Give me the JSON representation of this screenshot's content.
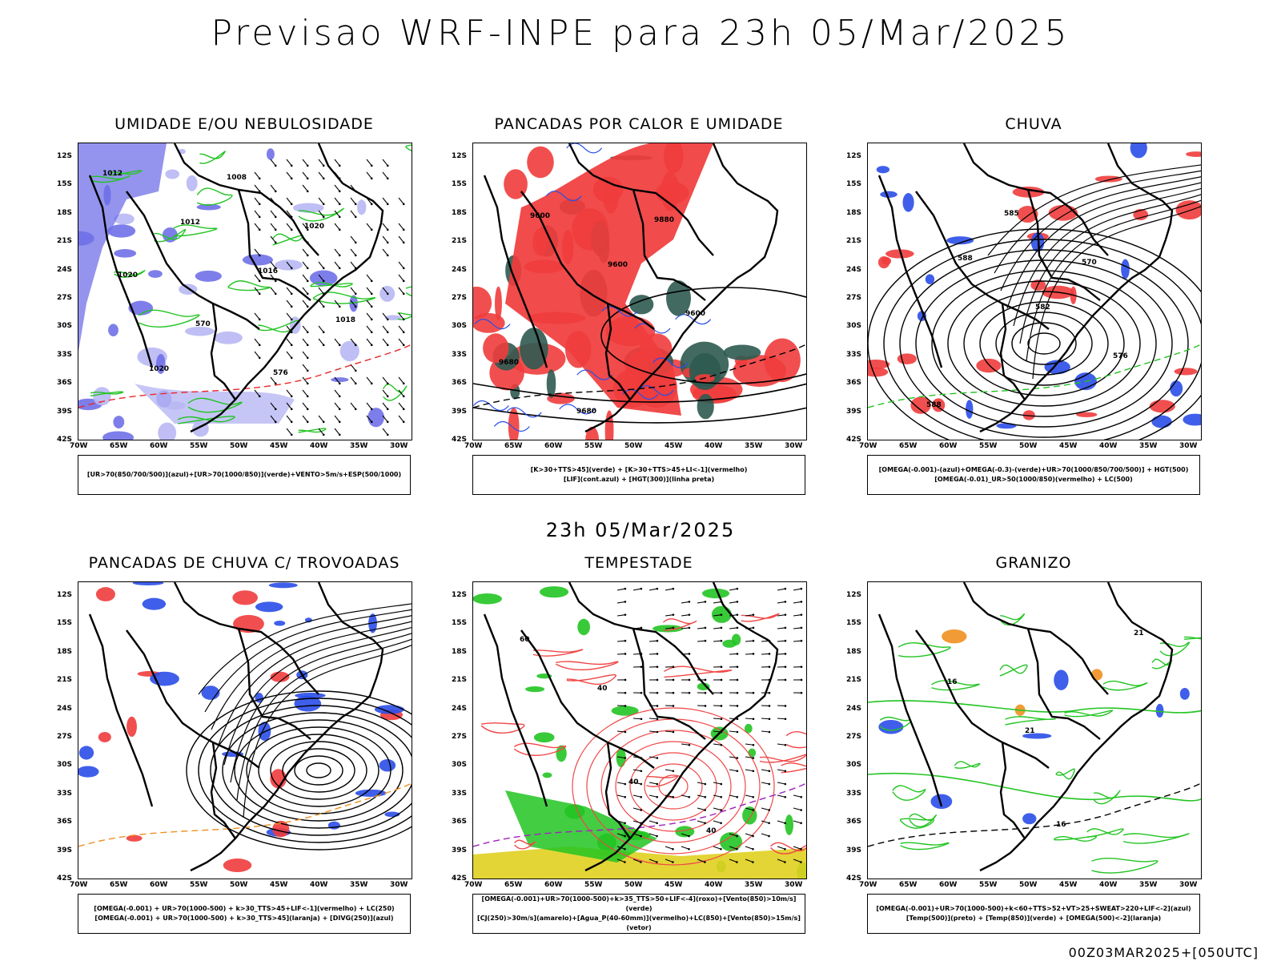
{
  "title": "Previsao WRF-INPE  para 23h 05/Mar/2025",
  "subtitle": "23h 05/Mar/2025",
  "footer": "00Z03MAR2025+[050UTC]",
  "axes": {
    "lat": [
      "12S",
      "15S",
      "18S",
      "21S",
      "24S",
      "27S",
      "30S",
      "33S",
      "36S",
      "39S",
      "42S"
    ],
    "lon": [
      "70W",
      "65W",
      "60W",
      "55W",
      "50W",
      "45W",
      "40W",
      "35W",
      "30W"
    ]
  },
  "panels": [
    {
      "title": "UMIDADE E/OU NEBULOSIDADE",
      "legend": [
        "[UR>70(850/700/500)](azul)+[UR>70(1000/850)](verde)+VENTO>5m/s+ESP(500/1000)"
      ],
      "labels": [
        "1012",
        "1012",
        "1016",
        "1018",
        "1020",
        "1008",
        "1020",
        "1020",
        "570",
        "576"
      ],
      "colors": {
        "fill1": "#7070e8",
        "fill2": "#b8b8f4",
        "line": "#22c422",
        "accent": "#e82828"
      }
    },
    {
      "title": "PANCADAS POR CALOR E UMIDADE",
      "legend": [
        "[K>30+TTS>45](verde) + [K>30+TTS>45+LI<-1](vermelho)",
        "[LIF](cont.azul) + [HGT(300)](linha preta)"
      ],
      "labels": [
        "9600",
        "9600",
        "9600",
        "9680",
        "9680",
        "9880"
      ],
      "colors": {
        "fill1": "#f03c3c",
        "fill2": "#2e5a50",
        "line": "#2a4ee8",
        "accent": "#000000"
      }
    },
    {
      "title": "CHUVA",
      "legend": [
        "[OMEGA(-0.001)-(azul)+OMEGA(-0.3)-(verde)+UR>70(1000/850/700/500)] + HGT(500)",
        "[OMEGA(-0.01)_UR>50(1000/850)(vermelho) + LC(500)"
      ],
      "labels": [
        "588",
        "582",
        "576",
        "588",
        "585",
        "570"
      ],
      "colors": {
        "fill1": "#f03c3c",
        "fill2": "#2a4ee8",
        "line": "#000000",
        "accent": "#22c422"
      }
    },
    {
      "title": "PANCADAS DE CHUVA C/ TROVOADAS",
      "legend": [
        "[OMEGA(-0.001) + UR>70(1000-500) + k>30_TTS>45+LIF<-1](vermelho) + LC(250)",
        "[OMEGA(-0.001) + UR>70(1000-500) + k>30_TTS>45](laranja) + [DIVG(250)](azul)"
      ],
      "labels": [],
      "colors": {
        "fill1": "#f03c3c",
        "fill2": "#2a4ee8",
        "line": "#000000",
        "accent": "#f09020"
      }
    },
    {
      "title": "TEMPESTADE",
      "legend": [
        "[OMEGA(-0.001)+UR>70(1000-500)+k>35_TTS>50+LIF<-4](roxo)+[Vento(850)>10m/s](verde)",
        "[CJ(250)>30m/s](amarelo)+[Agua_P(40-60mm)](vermelho)+LC(850)+[Vento(850)>15m/s](vetor)"
      ],
      "labels": [
        "40",
        "40",
        "60",
        "40"
      ],
      "colors": {
        "fill1": "#22c422",
        "fill2": "#e0d020",
        "line": "#f04848",
        "accent": "#a020c0"
      }
    },
    {
      "title": "GRANIZO",
      "legend": [
        "[OMEGA(-0.001)+UR>70(1000-500)+k<60+TTS>52+VT>25+SWEAT>220+LIF<-2](azul)",
        "[Temp(500)](preto) + [Temp(850)](verde) + [OMEGA(500)<-2](laranja)"
      ],
      "labels": [
        "16",
        "21",
        "16",
        "21"
      ],
      "colors": {
        "fill1": "#2a4ee8",
        "fill2": "#f09020",
        "line": "#22c422",
        "accent": "#000000"
      }
    }
  ]
}
